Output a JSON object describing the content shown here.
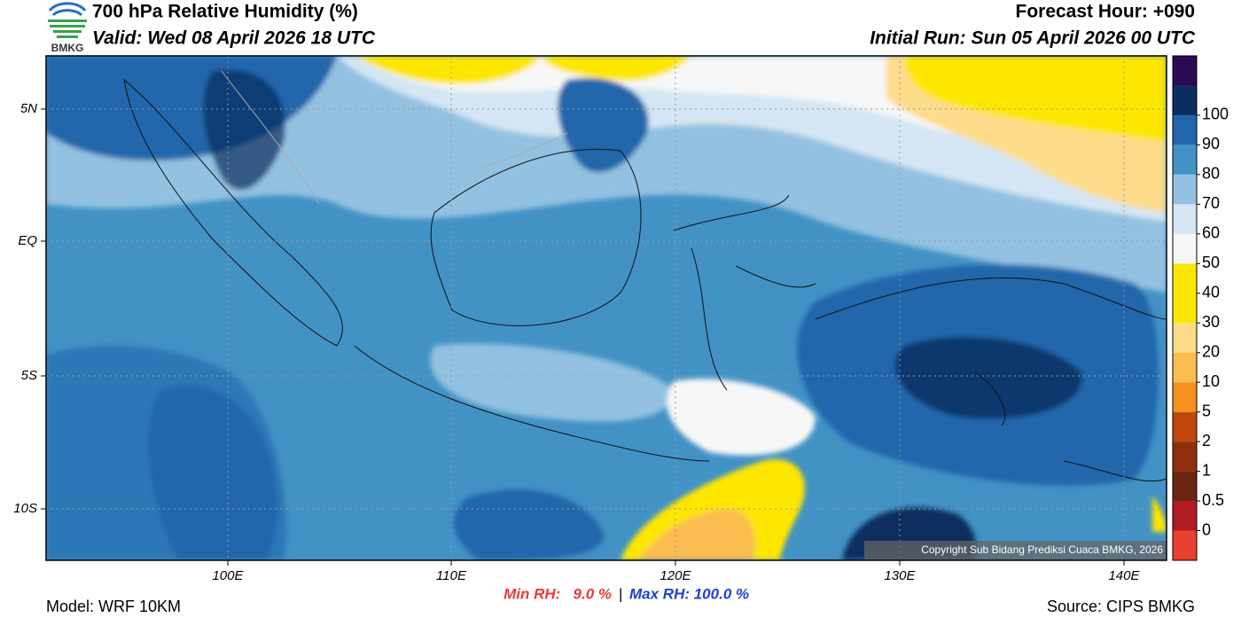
{
  "header": {
    "title": "700 hPa Relative Humidity (%)",
    "valid": "Valid: Wed 08 April 2026 18 UTC",
    "forecast_hour": "Forecast Hour: +090",
    "initial_run": "Initial Run: Sun 05 April 2026 00 UTC",
    "logo_text": "BMKG"
  },
  "map": {
    "lat_labels": [
      "5N",
      "EQ",
      "5S",
      "10S"
    ],
    "lon_labels": [
      "100E",
      "110E",
      "120E",
      "130E",
      "140E"
    ],
    "copyright": "Copyright Sub Bidang Prediksi Cuaca BMKG, 2026"
  },
  "colorbar": {
    "levels": [
      0,
      0.5,
      1,
      2,
      5,
      10,
      20,
      30,
      40,
      50,
      60,
      70,
      80,
      90,
      100
    ],
    "colors": [
      "#e8412f",
      "#b01c22",
      "#6b2511",
      "#8e2f0e",
      "#c0470c",
      "#f5901e",
      "#fbbd50",
      "#fddc8a",
      "#fde600",
      "#fde600",
      "#f7f7f7",
      "#d4e6f3",
      "#93c1e1",
      "#4392c6",
      "#2166ac",
      "#0b2e5e",
      "#2a0b52"
    ]
  },
  "footer": {
    "model": "Model: WRF 10KM",
    "min_rh": "Min RH:   9.0 %",
    "separator": "|",
    "max_rh": "Max RH: 100.0 %",
    "source": "Source: CIPS BMKG"
  }
}
